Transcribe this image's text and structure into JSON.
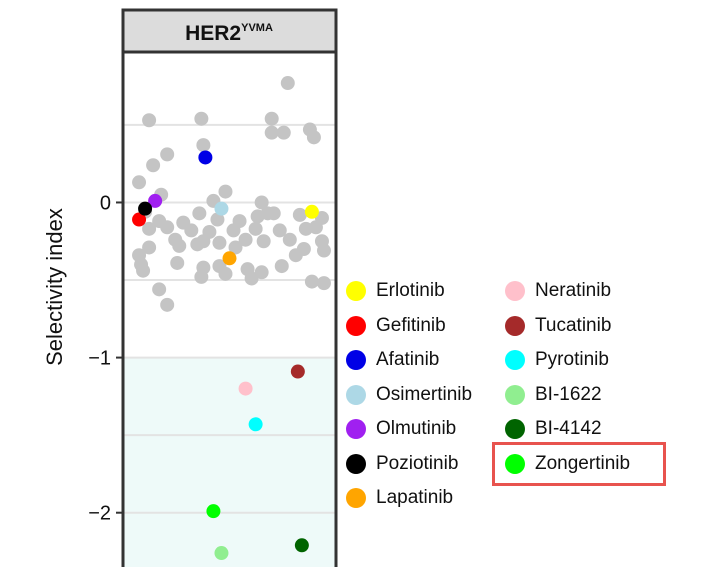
{
  "chart_data": {
    "type": "scatter",
    "panel_title": "HER2",
    "panel_title_superscript": "YVMA",
    "ylabel": "Selectivity index",
    "ylim": [
      -2.35,
      0.97
    ],
    "yticks": [
      0,
      -1,
      -2
    ],
    "ytick_labels": [
      "0",
      "−1",
      "−2"
    ],
    "gridlines": [
      0.5,
      0.0,
      -0.5,
      -1.0,
      -1.5,
      -2.0
    ],
    "shaded_region_below": -1.0,
    "shaded_color": "#eefaf9",
    "background_color": "#ffffff",
    "grey_color": "#c4c4c4",
    "highlight_color": "#e8534e",
    "highlighted_drug": "Zongertinib",
    "grey_points": [
      {
        "x": 0.1,
        "y": 0.53
      },
      {
        "x": 0.36,
        "y": 0.54
      },
      {
        "x": 0.79,
        "y": 0.77
      },
      {
        "x": 0.71,
        "y": 0.54
      },
      {
        "x": 0.71,
        "y": 0.45
      },
      {
        "x": 0.77,
        "y": 0.45
      },
      {
        "x": 0.9,
        "y": 0.47
      },
      {
        "x": 0.92,
        "y": 0.42
      },
      {
        "x": 0.37,
        "y": 0.37
      },
      {
        "x": 0.19,
        "y": 0.31
      },
      {
        "x": 0.12,
        "y": 0.24
      },
      {
        "x": 0.05,
        "y": 0.13
      },
      {
        "x": 0.16,
        "y": 0.05
      },
      {
        "x": 0.48,
        "y": 0.07
      },
      {
        "x": 0.42,
        "y": 0.01
      },
      {
        "x": 0.66,
        "y": 0.0
      },
      {
        "x": 0.08,
        "y": -0.06
      },
      {
        "x": 0.35,
        "y": -0.07
      },
      {
        "x": 0.64,
        "y": -0.09
      },
      {
        "x": 0.69,
        "y": -0.07
      },
      {
        "x": 0.72,
        "y": -0.07
      },
      {
        "x": 0.85,
        "y": -0.08
      },
      {
        "x": 0.96,
        "y": -0.1
      },
      {
        "x": 0.15,
        "y": -0.12
      },
      {
        "x": 0.27,
        "y": -0.13
      },
      {
        "x": 0.44,
        "y": -0.11
      },
      {
        "x": 0.55,
        "y": -0.12
      },
      {
        "x": 0.1,
        "y": -0.17
      },
      {
        "x": 0.19,
        "y": -0.16
      },
      {
        "x": 0.31,
        "y": -0.18
      },
      {
        "x": 0.4,
        "y": -0.19
      },
      {
        "x": 0.52,
        "y": -0.18
      },
      {
        "x": 0.63,
        "y": -0.17
      },
      {
        "x": 0.75,
        "y": -0.18
      },
      {
        "x": 0.88,
        "y": -0.17
      },
      {
        "x": 0.93,
        "y": -0.16
      },
      {
        "x": 0.23,
        "y": -0.24
      },
      {
        "x": 0.37,
        "y": -0.25
      },
      {
        "x": 0.45,
        "y": -0.26
      },
      {
        "x": 0.58,
        "y": -0.24
      },
      {
        "x": 0.67,
        "y": -0.25
      },
      {
        "x": 0.8,
        "y": -0.24
      },
      {
        "x": 0.96,
        "y": -0.25
      },
      {
        "x": 0.1,
        "y": -0.29
      },
      {
        "x": 0.25,
        "y": -0.28
      },
      {
        "x": 0.34,
        "y": -0.27
      },
      {
        "x": 0.53,
        "y": -0.29
      },
      {
        "x": 0.87,
        "y": -0.3
      },
      {
        "x": 0.05,
        "y": -0.34
      },
      {
        "x": 0.83,
        "y": -0.34
      },
      {
        "x": 0.97,
        "y": -0.31
      },
      {
        "x": 0.06,
        "y": -0.4
      },
      {
        "x": 0.24,
        "y": -0.39
      },
      {
        "x": 0.45,
        "y": -0.41
      },
      {
        "x": 0.37,
        "y": -0.42
      },
      {
        "x": 0.59,
        "y": -0.43
      },
      {
        "x": 0.07,
        "y": -0.44
      },
      {
        "x": 0.76,
        "y": -0.41
      },
      {
        "x": 0.66,
        "y": -0.45
      },
      {
        "x": 0.36,
        "y": -0.48
      },
      {
        "x": 0.48,
        "y": -0.46
      },
      {
        "x": 0.61,
        "y": -0.49
      },
      {
        "x": 0.91,
        "y": -0.51
      },
      {
        "x": 0.97,
        "y": -0.52
      },
      {
        "x": 0.15,
        "y": -0.56
      },
      {
        "x": 0.19,
        "y": -0.66
      }
    ],
    "series": [
      {
        "name": "Erlotinib",
        "color": "#ffff00",
        "points": [
          {
            "x": 0.91,
            "y": -0.06
          }
        ]
      },
      {
        "name": "Gefitinib",
        "color": "#ff0000",
        "points": [
          {
            "x": 0.05,
            "y": -0.11
          }
        ]
      },
      {
        "name": "Afatinib",
        "color": "#0000e6",
        "points": [
          {
            "x": 0.38,
            "y": 0.29
          }
        ]
      },
      {
        "name": "Osimertinib",
        "color": "#add8e6",
        "points": [
          {
            "x": 0.46,
            "y": -0.04
          }
        ]
      },
      {
        "name": "Olmutinib",
        "color": "#a020f0",
        "points": [
          {
            "x": 0.13,
            "y": 0.01
          }
        ]
      },
      {
        "name": "Poziotinib",
        "color": "#000000",
        "points": [
          {
            "x": 0.08,
            "y": -0.04
          }
        ]
      },
      {
        "name": "Lapatinib",
        "color": "#ffa500",
        "points": [
          {
            "x": 0.5,
            "y": -0.36
          }
        ]
      },
      {
        "name": "Neratinib",
        "color": "#ffc0cb",
        "points": [
          {
            "x": 0.58,
            "y": -1.2
          }
        ]
      },
      {
        "name": "Tucatinib",
        "color": "#a52a2a",
        "points": [
          {
            "x": 0.84,
            "y": -1.09
          }
        ]
      },
      {
        "name": "Pyrotinib",
        "color": "#00ffff",
        "points": [
          {
            "x": 0.63,
            "y": -1.43
          }
        ]
      },
      {
        "name": "BI-1622",
        "color": "#90ee90",
        "points": [
          {
            "x": 0.46,
            "y": -2.26
          }
        ]
      },
      {
        "name": "BI-4142",
        "color": "#006400",
        "points": [
          {
            "x": 0.86,
            "y": -2.21
          }
        ]
      },
      {
        "name": "Zongertinib",
        "color": "#00ff00",
        "points": [
          {
            "x": 0.42,
            "y": -1.99
          }
        ]
      }
    ]
  }
}
